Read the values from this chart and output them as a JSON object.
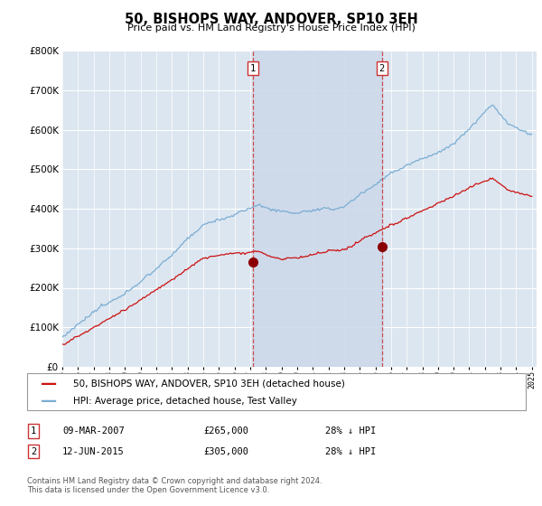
{
  "title": "50, BISHOPS WAY, ANDOVER, SP10 3EH",
  "subtitle": "Price paid vs. HM Land Registry's House Price Index (HPI)",
  "ylim": [
    0,
    800000
  ],
  "yticks": [
    0,
    100000,
    200000,
    300000,
    400000,
    500000,
    600000,
    700000,
    800000
  ],
  "hpi_color": "#7aadd4",
  "price_color": "#cc1111",
  "marker1_year": 2007.17,
  "marker2_year": 2015.42,
  "marker1_price": 265000,
  "marker2_price": 305000,
  "legend_property": "50, BISHOPS WAY, ANDOVER, SP10 3EH (detached house)",
  "legend_hpi": "HPI: Average price, detached house, Test Valley",
  "table_row1": [
    "1",
    "09-MAR-2007",
    "£265,000",
    "28% ↓ HPI"
  ],
  "table_row2": [
    "2",
    "12-JUN-2015",
    "£305,000",
    "28% ↓ HPI"
  ],
  "footer": "Contains HM Land Registry data © Crown copyright and database right 2024.\nThis data is licensed under the Open Government Licence v3.0.",
  "plot_bg": "#dce6f0",
  "shade_color": "#cdd9ea",
  "grid_color": "#ffffff"
}
